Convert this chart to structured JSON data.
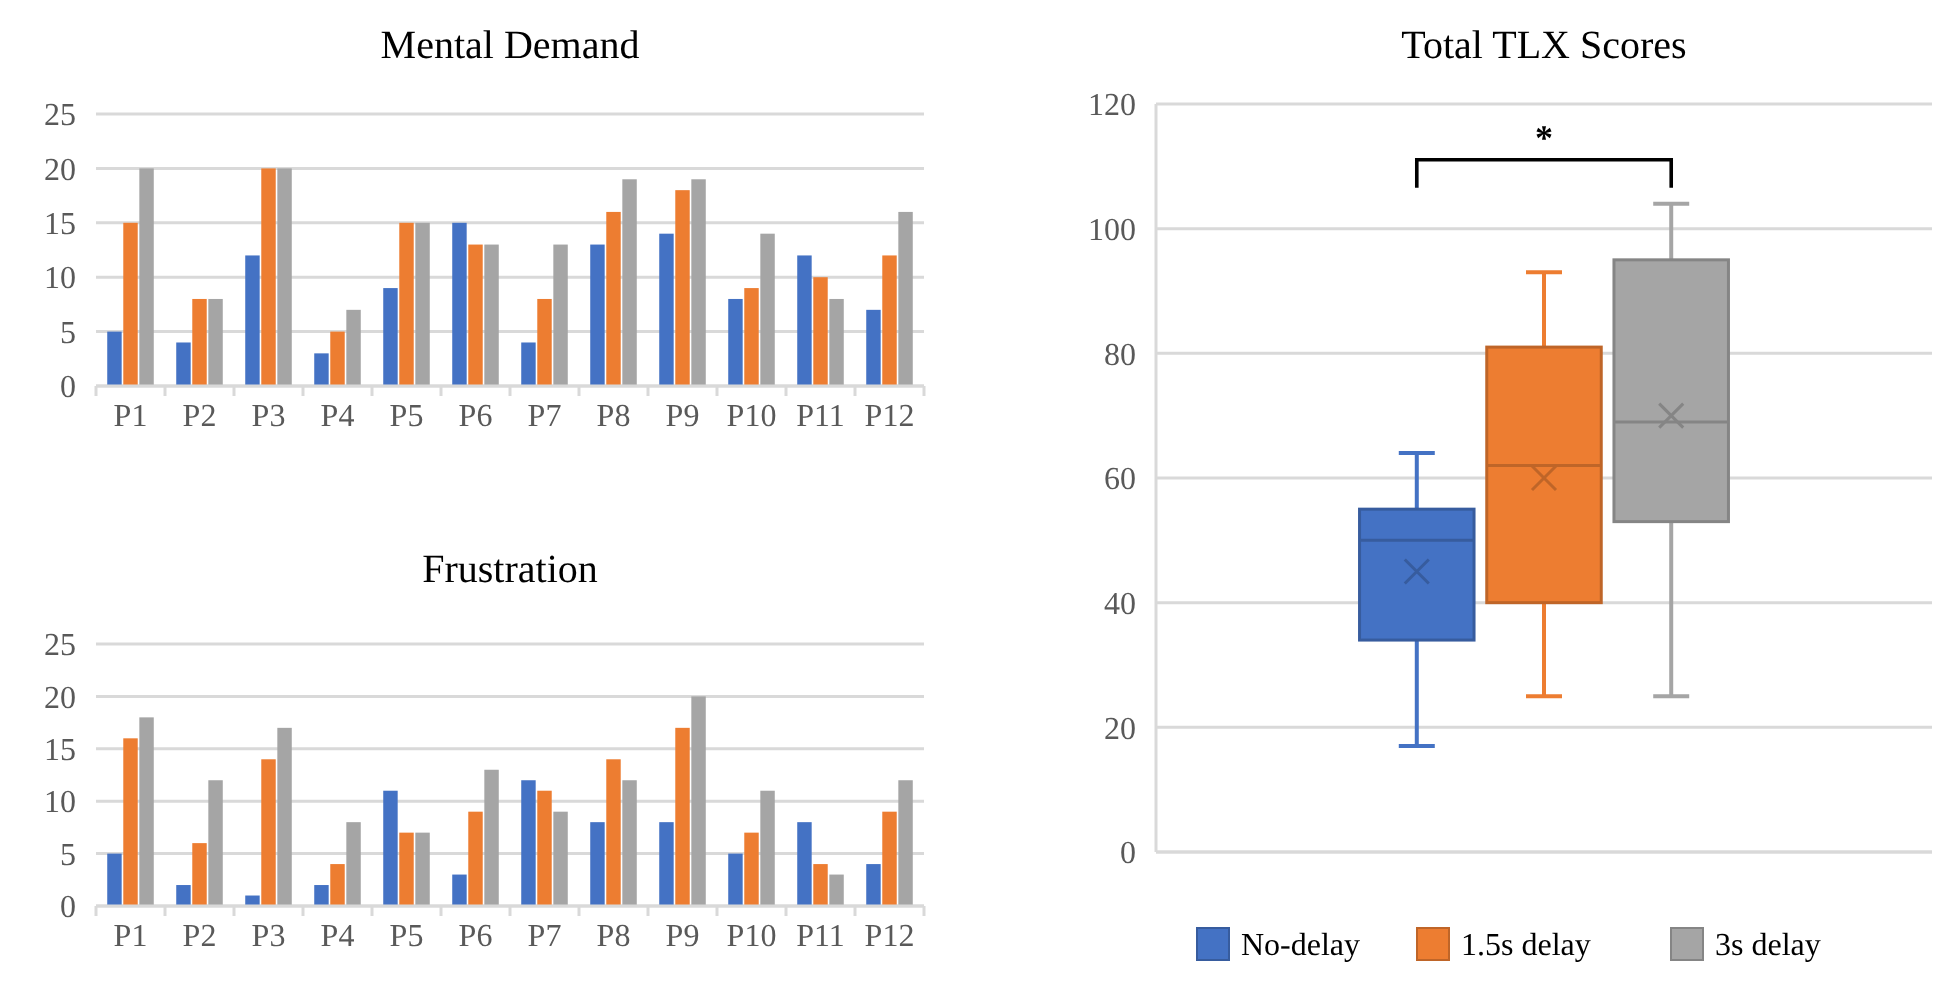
{
  "chart_data": [
    {
      "type": "bar",
      "title": "Mental Demand",
      "categories": [
        "P1",
        "P2",
        "P3",
        "P4",
        "P5",
        "P6",
        "P7",
        "P8",
        "P9",
        "P10",
        "P11",
        "P12"
      ],
      "ylim": [
        0,
        25
      ],
      "yticks": [
        0,
        5,
        10,
        15,
        20,
        25
      ],
      "grid": "y",
      "series": [
        {
          "color": "#4472c4",
          "values": [
            5,
            4,
            12,
            3,
            9,
            15,
            4,
            13,
            14,
            8,
            12,
            7
          ]
        },
        {
          "color": "#ed7d31",
          "values": [
            15,
            8,
            20,
            5,
            15,
            13,
            8,
            16,
            18,
            9,
            10,
            12
          ]
        },
        {
          "color": "#a5a5a5",
          "values": [
            20,
            8,
            20,
            7,
            15,
            13,
            13,
            19,
            19,
            14,
            8,
            16
          ]
        }
      ]
    },
    {
      "type": "bar",
      "title": "Frustration",
      "categories": [
        "P1",
        "P2",
        "P3",
        "P4",
        "P5",
        "P6",
        "P7",
        "P8",
        "P9",
        "P10",
        "P11",
        "P12"
      ],
      "ylim": [
        0,
        25
      ],
      "yticks": [
        0,
        5,
        10,
        15,
        20,
        25
      ],
      "grid": "y",
      "series": [
        {
          "color": "#4472c4",
          "values": [
            5,
            2,
            1,
            2,
            11,
            3,
            12,
            8,
            8,
            5,
            8,
            4
          ]
        },
        {
          "color": "#ed7d31",
          "values": [
            16,
            6,
            14,
            4,
            7,
            9,
            11,
            14,
            17,
            7,
            4,
            9
          ]
        },
        {
          "color": "#a5a5a5",
          "values": [
            18,
            12,
            17,
            8,
            7,
            13,
            9,
            12,
            20,
            11,
            3,
            12
          ]
        }
      ]
    },
    {
      "type": "box",
      "title": "Total TLX Scores",
      "categories": [
        null
      ],
      "ylim": [
        0,
        120
      ],
      "yticks": [
        0,
        20,
        40,
        60,
        80,
        100,
        120
      ],
      "grid": "y",
      "legend": "bottom",
      "annotations": [
        "*"
      ],
      "series": [
        {
          "name": "No-delay",
          "color": "#4472c4",
          "boxes": [
            {
              "low": 17,
              "q1": 34,
              "median": 50,
              "q3": 55,
              "high": 64,
              "mean": 45
            }
          ]
        },
        {
          "name": "1.5s delay",
          "color": "#ed7d31",
          "boxes": [
            {
              "low": 25,
              "q1": 40,
              "median": 62,
              "q3": 81,
              "high": 93,
              "mean": 60
            }
          ]
        },
        {
          "name": "3s delay",
          "color": "#a5a5a5",
          "boxes": [
            {
              "low": 25,
              "q1": 53,
              "median": 69,
              "q3": 95,
              "high": 104,
              "mean": 70
            }
          ]
        }
      ]
    }
  ]
}
